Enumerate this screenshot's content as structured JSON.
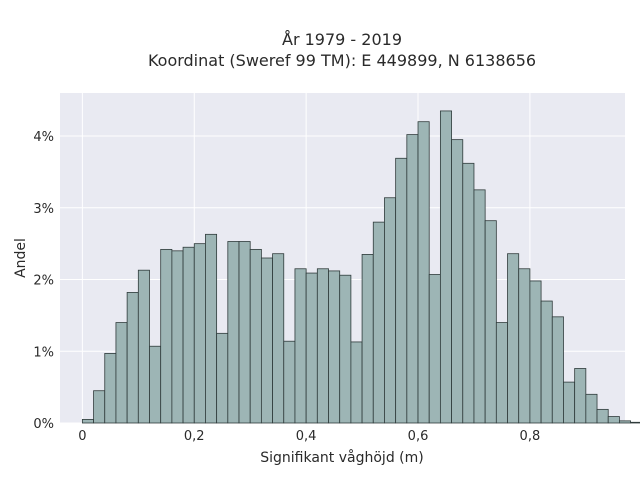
{
  "chart_data": {
    "type": "bar",
    "title": "År 1979 - 2019",
    "subtitle": "Koordinat (Sweref 99 TM): E 449899, N 6138656",
    "xlabel": "Signifikant våghöjd (m)",
    "ylabel": "Andel",
    "xlim": [
      -0.04,
      0.97
    ],
    "ylim": [
      0,
      4.6
    ],
    "x_ticks": [
      0,
      0.2,
      0.4,
      0.6,
      0.8
    ],
    "x_tick_labels": [
      "0",
      "0,2",
      "0,4",
      "0,6",
      "0,8"
    ],
    "y_ticks": [
      0,
      1,
      2,
      3,
      4
    ],
    "y_tick_labels": [
      "0%",
      "1%",
      "2%",
      "3%",
      "4%"
    ],
    "grid": true,
    "bin_width": 0.02,
    "bin_start": 0.01,
    "values": [
      0.05,
      0.45,
      0.97,
      1.4,
      1.82,
      2.13,
      1.07,
      2.42,
      2.4,
      2.45,
      2.5,
      2.63,
      1.25,
      2.53,
      2.53,
      2.42,
      2.3,
      2.36,
      1.14,
      2.15,
      2.09,
      2.15,
      2.12,
      2.06,
      1.13,
      2.35,
      2.8,
      3.14,
      3.69,
      4.02,
      4.2,
      2.07,
      4.35,
      3.95,
      3.62,
      3.25,
      2.82,
      1.4,
      2.36,
      2.15,
      1.98,
      1.7,
      1.48,
      0.57,
      0.76,
      0.4,
      0.19,
      0.09,
      0.03,
      0.01
    ],
    "colors": {
      "bar_fill": "#9db5b5",
      "bar_edge": "#2f3b3b",
      "plot_bg": "#e9eaf2",
      "grid": "#ffffff"
    }
  }
}
